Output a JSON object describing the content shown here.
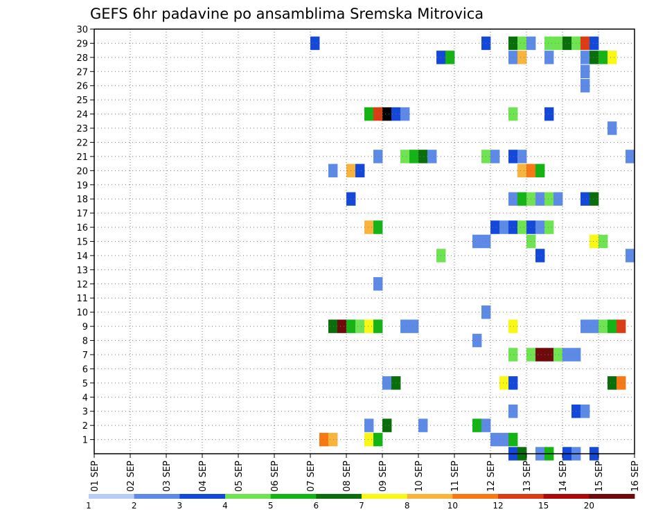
{
  "chart_data": {
    "type": "heatmap",
    "title": "GEFS 6hr padavine po ansamblima Sremska Mitrovica",
    "xlabel": "",
    "ylabel": "",
    "x_tick_labels": [
      "01 SEP",
      "02 SEP",
      "03 SEP",
      "04 SEP",
      "05 SEP",
      "06 SEP",
      "07 SEP",
      "08 SEP",
      "09 SEP",
      "10 SEP",
      "11 SEP",
      "12 SEP",
      "13 SEP",
      "14 SEP",
      "15 SEP",
      "16 SEP"
    ],
    "x_range_steps": [
      0,
      60
    ],
    "steps_per_day": 4,
    "y_tick_labels": [
      "1",
      "2",
      "3",
      "4",
      "5",
      "6",
      "7",
      "8",
      "9",
      "10",
      "11",
      "12",
      "13",
      "14",
      "15",
      "16",
      "17",
      "18",
      "19",
      "20",
      "21",
      "22",
      "23",
      "24",
      "25",
      "26",
      "27",
      "28",
      "29",
      "30"
    ],
    "y_range_members": [
      0,
      30
    ],
    "grid": true,
    "legend": {
      "placement": "bottom",
      "colors": [
        "#b8ccf8",
        "#5c8ae6",
        "#1448d8",
        "#6ee452",
        "#14b414",
        "#0a6e0a",
        "#f8f814",
        "#f8b43c",
        "#f87814",
        "#dc3c14",
        "#aa0a0a",
        "#6e0a0a"
      ],
      "tick_labels": [
        "1",
        "2",
        "3",
        "4",
        "5",
        "6",
        "7",
        "8",
        "10",
        "12",
        "15",
        "20"
      ]
    },
    "cells": [
      {
        "member": 29,
        "step": 24.5,
        "bin": 2
      },
      {
        "member": 29,
        "step": 43.5,
        "bin": 2
      },
      {
        "member": 29,
        "step": 46.5,
        "bin": 5
      },
      {
        "member": 29,
        "step": 47.5,
        "bin": 3
      },
      {
        "member": 29,
        "step": 48.5,
        "bin": 1
      },
      {
        "member": 29,
        "step": 50.5,
        "bin": 3
      },
      {
        "member": 29,
        "step": 51.5,
        "bin": 3
      },
      {
        "member": 29,
        "step": 52.5,
        "bin": 5
      },
      {
        "member": 29,
        "step": 53.5,
        "bin": 3
      },
      {
        "member": 29,
        "step": 54.5,
        "bin": 9
      },
      {
        "member": 29,
        "step": 55.5,
        "bin": 2
      },
      {
        "member": 28,
        "step": 38.5,
        "bin": 2
      },
      {
        "member": 28,
        "step": 39.5,
        "bin": 4
      },
      {
        "member": 28,
        "step": 46.5,
        "bin": 1
      },
      {
        "member": 28,
        "step": 47.5,
        "bin": 7
      },
      {
        "member": 28,
        "step": 50.5,
        "bin": 1
      },
      {
        "member": 28,
        "step": 54.5,
        "bin": 1
      },
      {
        "member": 28,
        "step": 55.5,
        "bin": 5
      },
      {
        "member": 28,
        "step": 56.5,
        "bin": 4
      },
      {
        "member": 28,
        "step": 57.5,
        "bin": 6
      },
      {
        "member": 27,
        "step": 54.5,
        "bin": 1
      },
      {
        "member": 26,
        "step": 54.5,
        "bin": 1
      },
      {
        "member": 24,
        "step": 30.5,
        "bin": 4
      },
      {
        "member": 24,
        "step": 31.5,
        "bin": 9
      },
      {
        "member": 24,
        "step": 32.5,
        "bin": 12
      },
      {
        "member": 24,
        "step": 33.5,
        "bin": 2
      },
      {
        "member": 24,
        "step": 34.5,
        "bin": 1
      },
      {
        "member": 24,
        "step": 46.5,
        "bin": 3
      },
      {
        "member": 24,
        "step": 50.5,
        "bin": 2
      },
      {
        "member": 23,
        "step": 57.5,
        "bin": 1
      },
      {
        "member": 21,
        "step": 31.5,
        "bin": 1
      },
      {
        "member": 21,
        "step": 34.5,
        "bin": 3
      },
      {
        "member": 21,
        "step": 35.5,
        "bin": 4
      },
      {
        "member": 21,
        "step": 36.5,
        "bin": 5
      },
      {
        "member": 21,
        "step": 37.5,
        "bin": 1
      },
      {
        "member": 21,
        "step": 43.5,
        "bin": 3
      },
      {
        "member": 21,
        "step": 44.5,
        "bin": 1
      },
      {
        "member": 21,
        "step": 46.5,
        "bin": 2
      },
      {
        "member": 21,
        "step": 47.5,
        "bin": 1
      },
      {
        "member": 21,
        "step": 59.5,
        "bin": 1
      },
      {
        "member": 20,
        "step": 26.5,
        "bin": 1
      },
      {
        "member": 20,
        "step": 28.5,
        "bin": 7
      },
      {
        "member": 20,
        "step": 29.5,
        "bin": 2
      },
      {
        "member": 20,
        "step": 47.5,
        "bin": 7
      },
      {
        "member": 20,
        "step": 48.5,
        "bin": 8
      },
      {
        "member": 20,
        "step": 49.5,
        "bin": 4
      },
      {
        "member": 18,
        "step": 28.5,
        "bin": 2
      },
      {
        "member": 18,
        "step": 46.5,
        "bin": 1
      },
      {
        "member": 18,
        "step": 47.5,
        "bin": 4
      },
      {
        "member": 18,
        "step": 48.5,
        "bin": 3
      },
      {
        "member": 18,
        "step": 49.5,
        "bin": 1
      },
      {
        "member": 18,
        "step": 50.5,
        "bin": 3
      },
      {
        "member": 18,
        "step": 51.5,
        "bin": 1
      },
      {
        "member": 18,
        "step": 54.5,
        "bin": 2
      },
      {
        "member": 18,
        "step": 55.5,
        "bin": 5
      },
      {
        "member": 16,
        "step": 30.5,
        "bin": 7
      },
      {
        "member": 16,
        "step": 31.5,
        "bin": 4
      },
      {
        "member": 16,
        "step": 44.5,
        "bin": 2
      },
      {
        "member": 16,
        "step": 45.5,
        "bin": 1
      },
      {
        "member": 16,
        "step": 46.5,
        "bin": 2
      },
      {
        "member": 16,
        "step": 47.5,
        "bin": 3
      },
      {
        "member": 16,
        "step": 48.5,
        "bin": 2
      },
      {
        "member": 16,
        "step": 49.5,
        "bin": 1
      },
      {
        "member": 16,
        "step": 50.5,
        "bin": 3
      },
      {
        "member": 15,
        "step": 42.5,
        "bin": 1
      },
      {
        "member": 15,
        "step": 43.5,
        "bin": 1
      },
      {
        "member": 15,
        "step": 48.5,
        "bin": 3
      },
      {
        "member": 15,
        "step": 55.5,
        "bin": 6
      },
      {
        "member": 15,
        "step": 56.5,
        "bin": 3
      },
      {
        "member": 14,
        "step": 38.5,
        "bin": 3
      },
      {
        "member": 14,
        "step": 49.5,
        "bin": 2
      },
      {
        "member": 14,
        "step": 59.5,
        "bin": 1
      },
      {
        "member": 12,
        "step": 31.5,
        "bin": 1
      },
      {
        "member": 10,
        "step": 43.5,
        "bin": 1
      },
      {
        "member": 9,
        "step": 26.5,
        "bin": 5
      },
      {
        "member": 9,
        "step": 27.5,
        "bin": 11
      },
      {
        "member": 9,
        "step": 28.5,
        "bin": 4
      },
      {
        "member": 9,
        "step": 29.5,
        "bin": 3
      },
      {
        "member": 9,
        "step": 30.5,
        "bin": 6
      },
      {
        "member": 9,
        "step": 31.5,
        "bin": 4
      },
      {
        "member": 9,
        "step": 34.5,
        "bin": 1
      },
      {
        "member": 9,
        "step": 35.5,
        "bin": 1
      },
      {
        "member": 9,
        "step": 46.5,
        "bin": 6
      },
      {
        "member": 9,
        "step": 54.5,
        "bin": 1
      },
      {
        "member": 9,
        "step": 55.5,
        "bin": 1
      },
      {
        "member": 9,
        "step": 56.5,
        "bin": 3
      },
      {
        "member": 9,
        "step": 57.5,
        "bin": 4
      },
      {
        "member": 9,
        "step": 58.5,
        "bin": 9
      },
      {
        "member": 8,
        "step": 42.5,
        "bin": 1
      },
      {
        "member": 7,
        "step": 46.5,
        "bin": 3
      },
      {
        "member": 7,
        "step": 48.5,
        "bin": 3
      },
      {
        "member": 7,
        "step": 49.5,
        "bin": 11
      },
      {
        "member": 7,
        "step": 50.5,
        "bin": 11
      },
      {
        "member": 7,
        "step": 51.5,
        "bin": 3
      },
      {
        "member": 7,
        "step": 52.5,
        "bin": 1
      },
      {
        "member": 7,
        "step": 53.5,
        "bin": 1
      },
      {
        "member": 5,
        "step": 32.5,
        "bin": 1
      },
      {
        "member": 5,
        "step": 33.5,
        "bin": 5
      },
      {
        "member": 5,
        "step": 45.5,
        "bin": 6
      },
      {
        "member": 5,
        "step": 46.5,
        "bin": 2
      },
      {
        "member": 5,
        "step": 57.5,
        "bin": 5
      },
      {
        "member": 5,
        "step": 58.5,
        "bin": 8
      },
      {
        "member": 3,
        "step": 46.5,
        "bin": 1
      },
      {
        "member": 3,
        "step": 53.5,
        "bin": 2
      },
      {
        "member": 3,
        "step": 54.5,
        "bin": 1
      },
      {
        "member": 2,
        "step": 30.5,
        "bin": 1
      },
      {
        "member": 2,
        "step": 32.5,
        "bin": 5
      },
      {
        "member": 2,
        "step": 36.5,
        "bin": 1
      },
      {
        "member": 2,
        "step": 42.5,
        "bin": 4
      },
      {
        "member": 2,
        "step": 43.5,
        "bin": 1
      },
      {
        "member": 1,
        "step": 25.5,
        "bin": 8
      },
      {
        "member": 1,
        "step": 26.5,
        "bin": 7
      },
      {
        "member": 1,
        "step": 30.5,
        "bin": 6
      },
      {
        "member": 1,
        "step": 31.5,
        "bin": 4
      },
      {
        "member": 1,
        "step": 44.5,
        "bin": 1
      },
      {
        "member": 1,
        "step": 45.5,
        "bin": 1
      },
      {
        "member": 1,
        "step": 46.5,
        "bin": 4
      },
      {
        "member": 0,
        "step": 46.5,
        "bin": 2
      },
      {
        "member": 0,
        "step": 47.5,
        "bin": 5
      },
      {
        "member": 0,
        "step": 49.5,
        "bin": 1
      },
      {
        "member": 0,
        "step": 50.5,
        "bin": 4
      },
      {
        "member": 0,
        "step": 52.5,
        "bin": 2
      },
      {
        "member": 0,
        "step": 53.5,
        "bin": 1
      },
      {
        "member": 0,
        "step": 55.5,
        "bin": 2
      }
    ]
  }
}
